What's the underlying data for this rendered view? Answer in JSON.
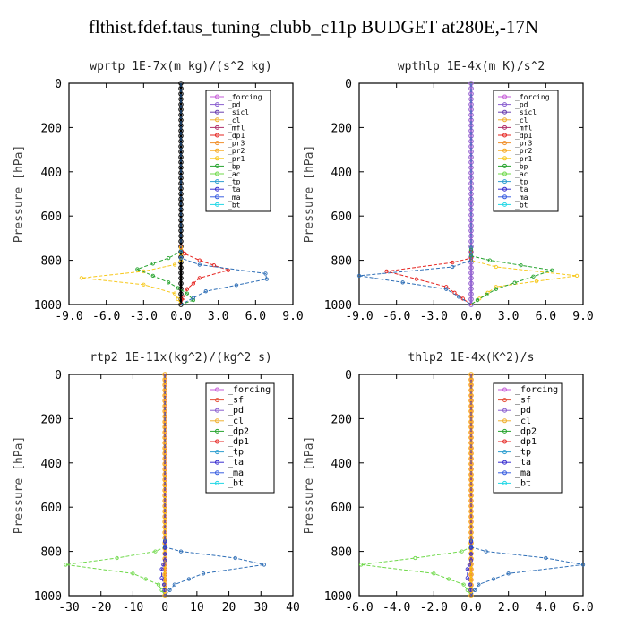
{
  "page": {
    "title": "flthist.fdef.taus_tuning_clubb_c11p  BUDGET at280E,-17N"
  },
  "chart_data": [
    {
      "type": "line",
      "title": "wprtp  1E-7x(m kg)/(s^2 kg)",
      "ylabel": "Pressure [hPa]",
      "xlim": [
        -9,
        9
      ],
      "ylim": [
        1000,
        0
      ],
      "xticks": [
        "-9.0",
        "-6.0",
        "-3.0",
        "0.0",
        "3.0",
        "6.0",
        "9.0"
      ],
      "yticks": [
        "0",
        "200",
        "400",
        "600",
        "800",
        "1000"
      ],
      "legend": [
        "_forcing",
        "_pd",
        "_sicl",
        "_cl",
        "_mfl",
        "_dp1",
        "_pr3",
        "_pr2",
        "_pr1",
        "_bp",
        "_ac",
        "_tp",
        "_ta",
        "_ma",
        "_bt"
      ],
      "legend_position": "top-right",
      "series": [
        {
          "name": "_forcing",
          "color": "#000000",
          "x": [
            0,
            0
          ],
          "y": [
            0,
            1000
          ]
        },
        {
          "name": "_dp1",
          "color": "#e52420",
          "x": [
            0,
            0,
            0.3,
            1.5,
            3.8,
            1.5,
            0.5,
            0.2,
            0
          ],
          "y": [
            0,
            740,
            770,
            800,
            845,
            880,
            930,
            970,
            1000
          ]
        },
        {
          "name": "_pr1",
          "color": "#f7c81c",
          "x": [
            0,
            0,
            -0.5,
            -3,
            -8,
            -3,
            -0.5,
            0
          ],
          "y": [
            0,
            800,
            820,
            850,
            880,
            910,
            950,
            1000
          ]
        },
        {
          "name": "_bp",
          "color": "#27a42f",
          "x": [
            0,
            0,
            -1,
            -3.5,
            -1,
            0.5,
            1,
            0
          ],
          "y": [
            0,
            760,
            790,
            840,
            900,
            950,
            980,
            1000
          ]
        },
        {
          "name": "_tp",
          "color": "#2f6fb7",
          "x": [
            0,
            0,
            1.5,
            6.8,
            6.9,
            2,
            0
          ],
          "y": [
            0,
            790,
            820,
            860,
            885,
            940,
            1000
          ]
        }
      ]
    },
    {
      "type": "line",
      "title": "wpthlp  1E-4x(m K)/s^2",
      "ylabel": "Pressure [hPa]",
      "xlim": [
        -9,
        9
      ],
      "ylim": [
        1000,
        0
      ],
      "xticks": [
        "-9.0",
        "-6.0",
        "-3.0",
        "0.0",
        "3.0",
        "6.0",
        "9.0"
      ],
      "yticks": [
        "0",
        "200",
        "400",
        "600",
        "800",
        "1000"
      ],
      "legend": [
        "_forcing",
        "_pd",
        "_sicl",
        "_cl",
        "_mfl",
        "_dp1",
        "_pr3",
        "_pr2",
        "_pr1",
        "_bp",
        "_ac",
        "_tp",
        "_ta",
        "_ma",
        "_bt"
      ],
      "legend_position": "top-right",
      "series": [
        {
          "name": "_forcing",
          "color": "#d9a0e0",
          "x": [
            0,
            0
          ],
          "y": [
            0,
            1000
          ]
        },
        {
          "name": "_pd",
          "color": "#8a5fd0",
          "x": [
            0,
            0
          ],
          "y": [
            0,
            1000
          ]
        },
        {
          "name": "_dp1",
          "color": "#e52420",
          "x": [
            0,
            0,
            -1.5,
            -6.8,
            -2,
            0
          ],
          "y": [
            0,
            790,
            810,
            850,
            920,
            1000
          ]
        },
        {
          "name": "_pr1",
          "color": "#f7c81c",
          "x": [
            0,
            0,
            2,
            8.5,
            2,
            0
          ],
          "y": [
            0,
            800,
            830,
            870,
            920,
            1000
          ]
        },
        {
          "name": "_bp",
          "color": "#27a42f",
          "x": [
            0,
            0,
            1.5,
            6.5,
            2,
            0.5,
            0
          ],
          "y": [
            0,
            780,
            800,
            845,
            930,
            980,
            1000
          ]
        },
        {
          "name": "_tp",
          "color": "#2f6fb7",
          "x": [
            0,
            0,
            -1.5,
            -9,
            -2,
            0
          ],
          "y": [
            0,
            800,
            830,
            870,
            930,
            1000
          ]
        }
      ]
    },
    {
      "type": "line",
      "title": "rtp2  1E-11x(kg^2)/(kg^2 s)",
      "ylabel": "Pressure [hPa]",
      "xlim": [
        -30,
        40
      ],
      "ylim": [
        1000,
        0
      ],
      "xticks": [
        "-30",
        "-20",
        "-10",
        "0",
        "10",
        "20",
        "30",
        "40"
      ],
      "yticks": [
        "0",
        "200",
        "400",
        "600",
        "800",
        "1000"
      ],
      "legend": [
        "_forcing",
        "_sf",
        "_pd",
        "_cl",
        "_dp2",
        "_dp1",
        "_tp",
        "_ta",
        "_ma",
        "_bt"
      ],
      "legend_position": "top-right",
      "series": [
        {
          "name": "_forcing",
          "color": "#e52420",
          "x": [
            0,
            0
          ],
          "y": [
            0,
            1000
          ]
        },
        {
          "name": "_pd",
          "color": "#f7c81c",
          "x": [
            0,
            0
          ],
          "y": [
            0,
            1000
          ]
        },
        {
          "name": "_dp1",
          "color": "#6fd94a",
          "x": [
            0,
            0,
            -3,
            -15,
            -31,
            -10,
            -2,
            0
          ],
          "y": [
            0,
            780,
            800,
            830,
            860,
            900,
            950,
            1000
          ]
        },
        {
          "name": "_tp",
          "color": "#2f6fb7",
          "x": [
            0,
            0,
            5,
            22,
            31,
            12,
            3,
            0
          ],
          "y": [
            0,
            780,
            800,
            830,
            860,
            900,
            950,
            1000
          ]
        },
        {
          "name": "_ta",
          "color": "#3a2fd0",
          "x": [
            0,
            0,
            -0.5,
            -1,
            -1,
            -0.3,
            0
          ],
          "y": [
            0,
            840,
            860,
            880,
            920,
            950,
            1000
          ]
        }
      ]
    },
    {
      "type": "line",
      "title": "thlp2  1E-4x(K^2)/s",
      "ylabel": "Pressure [hPa]",
      "xlim": [
        -6,
        6
      ],
      "ylim": [
        1000,
        0
      ],
      "xticks": [
        "-6.0",
        "-4.0",
        "-2.0",
        "0.0",
        "2.0",
        "4.0",
        "6.0"
      ],
      "yticks": [
        "0",
        "200",
        "400",
        "600",
        "800",
        "1000"
      ],
      "legend": [
        "_forcing",
        "_sf",
        "_pd",
        "_cl",
        "_dp2",
        "_dp1",
        "_tp",
        "_ta",
        "_ma",
        "_bt"
      ],
      "legend_position": "top-right",
      "series": [
        {
          "name": "_forcing",
          "color": "#e52420",
          "x": [
            0,
            0
          ],
          "y": [
            0,
            1000
          ]
        },
        {
          "name": "_pd",
          "color": "#f7c81c",
          "x": [
            0,
            0
          ],
          "y": [
            0,
            1000
          ]
        },
        {
          "name": "_dp1",
          "color": "#6fd94a",
          "x": [
            0,
            0,
            -0.5,
            -3,
            -5.9,
            -2,
            -0.4,
            0
          ],
          "y": [
            0,
            780,
            800,
            830,
            860,
            900,
            950,
            1000
          ]
        },
        {
          "name": "_tp",
          "color": "#2f6fb7",
          "x": [
            0,
            0,
            0.8,
            4,
            6,
            2,
            0.4,
            0
          ],
          "y": [
            0,
            780,
            800,
            830,
            860,
            900,
            950,
            1000
          ]
        },
        {
          "name": "_ta",
          "color": "#3a2fd0",
          "x": [
            0,
            0,
            -0.1,
            -0.2,
            -0.2,
            -0.05,
            0
          ],
          "y": [
            0,
            840,
            860,
            880,
            920,
            950,
            1000
          ]
        }
      ]
    }
  ],
  "legend_colors": {
    "_forcing": "#c65bd8",
    "_pd": "#8a5fd0",
    "_sicl": "#6a3fb0",
    "_sf": "#e5503a",
    "_cl": "#f0b030",
    "_mfl": "#b0306a",
    "_dp1": "#e52420",
    "_dp2": "#27a42f",
    "_pr3": "#f0902c",
    "_pr2": "#f7a81c",
    "_pr1": "#f7c81c",
    "_bp": "#27a42f",
    "_ac": "#6fd94a",
    "_tp": "#2f9fd0",
    "_ta": "#3a2fd0",
    "_ma": "#3a5fe0",
    "_bt": "#23d7e6"
  }
}
